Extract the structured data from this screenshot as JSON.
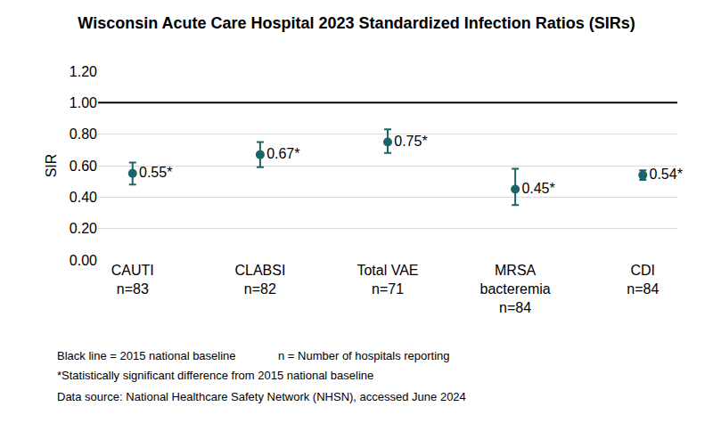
{
  "chart_data": {
    "type": "scatter",
    "title": "Wisconsin Acute Care Hospital 2023 Standardized Infection Ratios (SIRs)",
    "y_label": "SIR",
    "categories": [
      "CAUTI\nn=83",
      "CLABSI\nn=82",
      "Total VAE\nn=71",
      "MRSA\nbacteremia\nn=84",
      "CDI\nn=84"
    ],
    "values": [
      0.55,
      0.67,
      0.75,
      0.45,
      0.54
    ],
    "value_labels": [
      "0.55*",
      "0.67*",
      "0.75*",
      "0.45*",
      "0.54*"
    ],
    "ci_lower": [
      0.48,
      0.59,
      0.68,
      0.35,
      0.51
    ],
    "ci_upper": [
      0.62,
      0.75,
      0.83,
      0.58,
      0.57
    ],
    "baseline": 1,
    "color": "#1b6469",
    "marker": "circle",
    "data_labels": true,
    "grid": true,
    "ylim": [
      0,
      1.2
    ],
    "yticks": [
      {
        "value": 0,
        "label": "0.00"
      },
      {
        "value": 0.2,
        "label": "0.20"
      },
      {
        "value": 0.4,
        "label": "0.40"
      },
      {
        "value": 0.6,
        "label": "0.60"
      },
      {
        "value": 0.8,
        "label": "0.80"
      },
      {
        "value": 1,
        "label": "1.00"
      },
      {
        "value": 1.2,
        "label": "1.20"
      }
    ],
    "notes": [
      [
        "Black line = 2015 national baseline",
        "n = Number of hospitals reporting"
      ],
      [
        "*Statistically significant difference from 2015 national baseline"
      ],
      [
        "Data source: National Healthcare Safety Network (NHSN), accessed June 2024"
      ]
    ]
  }
}
